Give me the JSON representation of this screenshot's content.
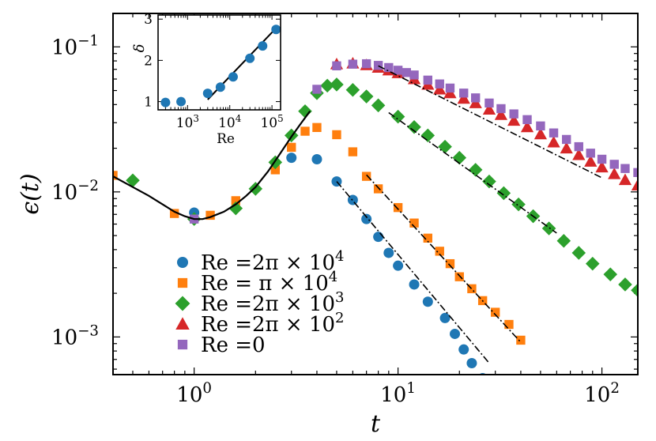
{
  "chart_data": [
    {
      "type": "scatter",
      "xscale": "log",
      "yscale": "log",
      "xlabel": "t",
      "ylabel": "ϵ(t)",
      "xlim": [
        0.4,
        150
      ],
      "ylim": [
        0.00055,
        0.17
      ],
      "x_ticks": [
        {
          "value": 1,
          "mant": "10",
          "exp": "0"
        },
        {
          "value": 10,
          "mant": "10",
          "exp": "1"
        },
        {
          "value": 100,
          "mant": "10",
          "exp": "2"
        }
      ],
      "y_ticks": [
        {
          "value": 0.001,
          "mant": "10",
          "exp": "−3"
        },
        {
          "value": 0.01,
          "mant": "10",
          "exp": "−2"
        },
        {
          "value": 0.1,
          "mant": "10",
          "exp": "−1"
        }
      ],
      "legend_position": "lower-left",
      "series": [
        {
          "name": "Re =2π × 10⁴",
          "legend": {
            "prefix": "Re =2π × 10",
            "exp": "4"
          },
          "marker": "circle",
          "color": "#1f77b4",
          "x": [
            1,
            3,
            4,
            5,
            6,
            7,
            8,
            9,
            10,
            12,
            14,
            17,
            19,
            21,
            23,
            26
          ],
          "y": [
            0.0072,
            0.0172,
            0.0168,
            0.0118,
            0.0088,
            0.0065,
            0.0049,
            0.0038,
            0.0031,
            0.0023,
            0.00175,
            0.00135,
            0.00105,
            0.00082,
            0.00066,
            0.00052
          ]
        },
        {
          "name": "Re = π × 10⁴",
          "legend": {
            "prefix": "Re =  π × 10",
            "exp": "4"
          },
          "marker": "square",
          "color": "#ff7f0e",
          "x": [
            0.4,
            0.8,
            1.2,
            1.6,
            2.5,
            3,
            3.5,
            4,
            5,
            6,
            7,
            8,
            10,
            12,
            14,
            16,
            18,
            20,
            23,
            26,
            30,
            35,
            40
          ],
          "y": [
            0.013,
            0.0071,
            0.0069,
            0.0087,
            0.0142,
            0.0203,
            0.0262,
            0.0278,
            0.0248,
            0.0189,
            0.0128,
            0.0105,
            0.0078,
            0.0061,
            0.0048,
            0.0039,
            0.0032,
            0.0026,
            0.00215,
            0.00178,
            0.00148,
            0.00122,
            0.00095
          ]
        },
        {
          "name": "Re =2π × 10³",
          "legend": {
            "prefix": "Re =2π × 10",
            "exp": "3"
          },
          "marker": "diamond",
          "color": "#2ca02c",
          "x": [
            0.5,
            1,
            1.6,
            2,
            2.5,
            3,
            3.5,
            4,
            4.5,
            5,
            6,
            7,
            8,
            10,
            12,
            14,
            17,
            20,
            24,
            28,
            33,
            39,
            46,
            55,
            65,
            77,
            90,
            110,
            130,
            150
          ],
          "y": [
            0.012,
            0.0065,
            0.0077,
            0.0105,
            0.016,
            0.0245,
            0.036,
            0.048,
            0.054,
            0.055,
            0.0505,
            0.0455,
            0.0395,
            0.033,
            0.028,
            0.0245,
            0.0205,
            0.0172,
            0.0142,
            0.0118,
            0.0098,
            0.0082,
            0.0068,
            0.0056,
            0.0046,
            0.0038,
            0.0032,
            0.0027,
            0.0023,
            0.0021
          ]
        },
        {
          "name": "Re =2π × 10²",
          "legend": {
            "prefix": "Re =2π × 10",
            "exp": "2"
          },
          "marker": "triangle",
          "color": "#d62728",
          "x": [
            5,
            6,
            7,
            8,
            9,
            10,
            12,
            14,
            16,
            18,
            21,
            24,
            28,
            32,
            37,
            43,
            50,
            58,
            67,
            77,
            88,
            100,
            115,
            130,
            150
          ],
          "y": [
            0.076,
            0.077,
            0.075,
            0.072,
            0.069,
            0.066,
            0.06,
            0.055,
            0.051,
            0.048,
            0.044,
            0.041,
            0.037,
            0.034,
            0.031,
            0.028,
            0.025,
            0.022,
            0.02,
            0.018,
            0.0162,
            0.0148,
            0.0133,
            0.0121,
            0.0111
          ]
        },
        {
          "name": "Re =0",
          "legend": {
            "prefix": "Re =0",
            "exp": ""
          },
          "marker": "square",
          "color": "#9467bd",
          "x": [
            1,
            4,
            5,
            6,
            7,
            8,
            9,
            10,
            11,
            12,
            14,
            16,
            18,
            21,
            24,
            28,
            32,
            37,
            43,
            50,
            58,
            67,
            77,
            88,
            100,
            115,
            130,
            150
          ],
          "y": [
            0.0065,
            0.051,
            0.074,
            0.076,
            0.0765,
            0.0745,
            0.072,
            0.069,
            0.0665,
            0.064,
            0.059,
            0.0555,
            0.052,
            0.048,
            0.0445,
            0.041,
            0.0375,
            0.0345,
            0.0315,
            0.0285,
            0.0255,
            0.023,
            0.0205,
            0.0185,
            0.0168,
            0.0155,
            0.0145,
            0.0136
          ]
        }
      ],
      "fit_lines": [
        {
          "style": "solid",
          "x": [
            0.4,
            0.5,
            0.6,
            0.7,
            0.8,
            0.9,
            1.0,
            1.1,
            1.2,
            1.4,
            1.6,
            1.8,
            2.0,
            2.3,
            2.6,
            3.0,
            3.3,
            3.7
          ],
          "y": [
            0.0128,
            0.0108,
            0.0094,
            0.0082,
            0.0073,
            0.0068,
            0.0065,
            0.0065,
            0.0067,
            0.0073,
            0.0082,
            0.0094,
            0.0108,
            0.0138,
            0.0178,
            0.024,
            0.029,
            0.036
          ]
        },
        {
          "style": "dashdot",
          "x": [
            5,
            28
          ],
          "y": [
            0.0118,
            0.00066
          ]
        },
        {
          "style": "dashdot",
          "x": [
            7,
            40
          ],
          "y": [
            0.0131,
            0.00092
          ]
        },
        {
          "style": "dashdot",
          "x": [
            9,
            60
          ],
          "y": [
            0.0352,
            0.0052
          ]
        },
        {
          "style": "dashdot",
          "x": [
            8,
            100
          ],
          "y": [
            0.074,
            0.0125
          ]
        }
      ]
    },
    {
      "type": "scatter",
      "xscale": "log",
      "xlabel": "Re",
      "ylabel": "δ",
      "xlim": [
        200,
        160000
      ],
      "ylim": [
        0.8,
        3.1
      ],
      "x_ticks": [
        {
          "value": 1000,
          "mant": "10",
          "exp": "3"
        },
        {
          "value": 10000,
          "mant": "10",
          "exp": "4"
        },
        {
          "value": 100000,
          "mant": "10",
          "exp": "5"
        }
      ],
      "y_ticks": [
        {
          "value": 1,
          "label": "1"
        },
        {
          "value": 2,
          "label": "2"
        },
        {
          "value": 3,
          "label": "3"
        }
      ],
      "series": [
        {
          "marker": "circle",
          "color": "#1f77b4",
          "x": [
            300,
            700,
            3000,
            6000,
            12000,
            30000,
            60000,
            125000
          ],
          "y": [
            0.98,
            1.0,
            1.2,
            1.35,
            1.6,
            2.05,
            2.35,
            2.75
          ]
        }
      ],
      "fit_lines": [
        {
          "style": "solid",
          "x": [
            3000,
            130000
          ],
          "y": [
            1.05,
            2.8
          ]
        }
      ]
    }
  ]
}
